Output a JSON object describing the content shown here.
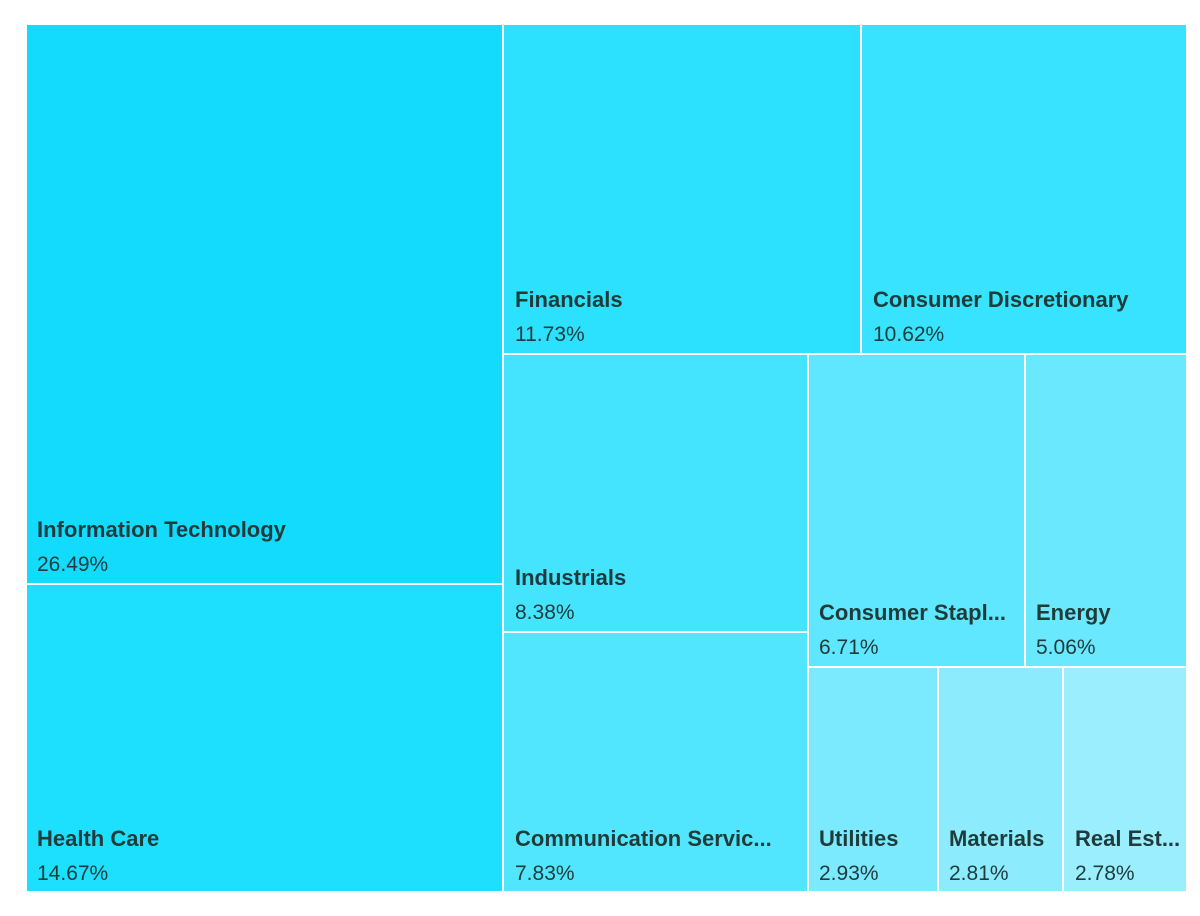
{
  "chart_data": {
    "type": "treemap",
    "title": "",
    "unit": "%",
    "tiles": [
      {
        "name": "Information Technology",
        "label": "Information Technology",
        "value": 26.49,
        "value_label": "26.49%",
        "color": "#12dbfe"
      },
      {
        "name": "Health Care",
        "label": "Health Care",
        "value": 14.67,
        "value_label": "14.67%",
        "color": "#1ddffe"
      },
      {
        "name": "Financials",
        "label": "Financials",
        "value": 11.73,
        "value_label": "11.73%",
        "color": "#2be1fe"
      },
      {
        "name": "Consumer Discretionary",
        "label": "Consumer Discretionary",
        "value": 10.62,
        "value_label": "10.62%",
        "color": "#37e3fe"
      },
      {
        "name": "Industrials",
        "label": "Industrials",
        "value": 8.38,
        "value_label": "8.38%",
        "color": "#44e4fe"
      },
      {
        "name": "Communication Services",
        "label": "Communication Servic...",
        "value": 7.83,
        "value_label": "7.83%",
        "color": "#52e6fe"
      },
      {
        "name": "Consumer Staples",
        "label": "Consumer Stapl...",
        "value": 6.71,
        "value_label": "6.71%",
        "color": "#5ee7fe"
      },
      {
        "name": "Energy",
        "label": "Energy",
        "value": 5.06,
        "value_label": "5.06%",
        "color": "#6ae9fe"
      },
      {
        "name": "Utilities",
        "label": "Utilities",
        "value": 2.93,
        "value_label": "2.93%",
        "color": "#7beafe"
      },
      {
        "name": "Materials",
        "label": "Materials",
        "value": 2.81,
        "value_label": "2.81%",
        "color": "#8cecfe"
      },
      {
        "name": "Real Estate",
        "label": "Real Est...",
        "value": 2.78,
        "value_label": "2.78%",
        "color": "#9beefe"
      }
    ]
  }
}
